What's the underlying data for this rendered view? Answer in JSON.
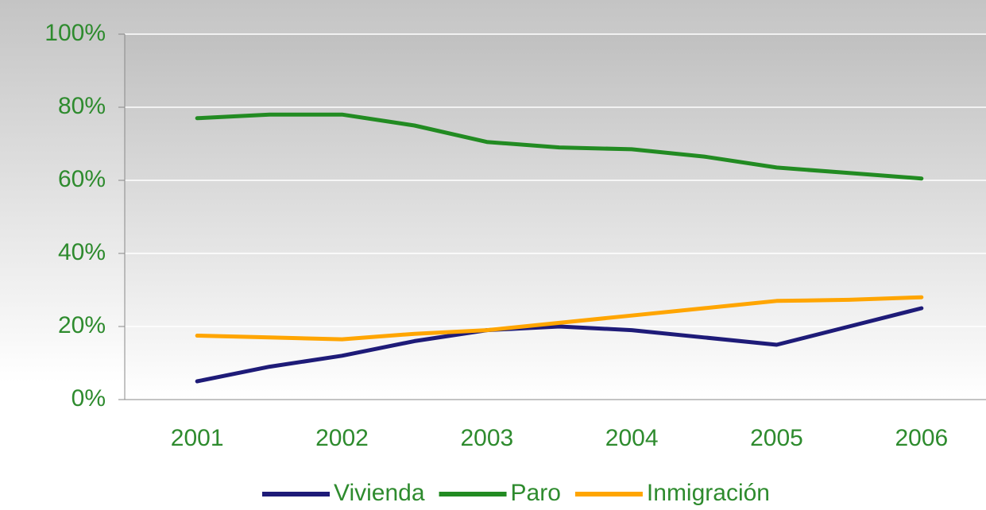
{
  "chart_data": {
    "type": "line",
    "x": [
      2001,
      2001.5,
      2002,
      2002.5,
      2003,
      2003.5,
      2004,
      2004.5,
      2005,
      2005.5,
      2006
    ],
    "series": [
      {
        "name": "Vivienda",
        "color": "#1e1b78",
        "values": [
          5,
          9,
          12,
          16,
          19,
          20,
          19,
          17,
          15,
          20,
          25
        ]
      },
      {
        "name": "Paro",
        "color": "#228b22",
        "values": [
          77,
          78,
          78,
          75,
          70.5,
          69,
          68.5,
          66.5,
          63.5,
          62,
          60.5
        ]
      },
      {
        "name": "Inmigración",
        "color": "#ffa500",
        "values": [
          17.5,
          17,
          16.5,
          18,
          19,
          21,
          23,
          25,
          27,
          27.3,
          28
        ]
      }
    ],
    "xlim": [
      2000.5,
      2006.5
    ],
    "xticks": [
      2001,
      2002,
      2003,
      2004,
      2005,
      2006
    ],
    "ylim": [
      0,
      100
    ],
    "yticks": [
      {
        "value": 0,
        "label": "0%"
      },
      {
        "value": 20,
        "label": "20%"
      },
      {
        "value": 40,
        "label": "40%"
      },
      {
        "value": 60,
        "label": "60%"
      },
      {
        "value": 80,
        "label": "80%"
      },
      {
        "value": 100,
        "label": "100%"
      }
    ],
    "grid": true,
    "legend": "bottom"
  }
}
